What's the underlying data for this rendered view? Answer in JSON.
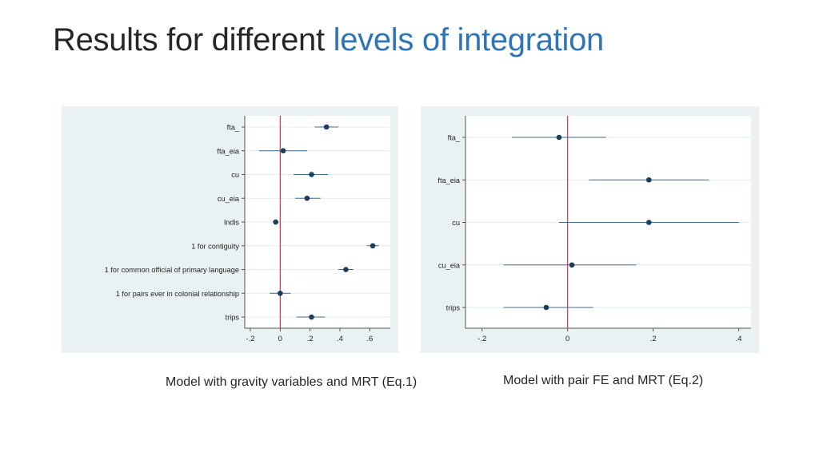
{
  "title": {
    "part1": "Results for different",
    "part2": "levels of integration",
    "accent_color": "#2e75b6"
  },
  "captions": {
    "left": "Model with gravity variables and MRT (Eq.1)",
    "right": "Model with pair FE and MRT (Eq.2)"
  },
  "chart_data": [
    {
      "type": "scatter",
      "subtype": "coefficient-plot",
      "title": "",
      "xlabel": "",
      "ylabel": "",
      "xlim": [
        -0.2,
        0.7
      ],
      "xticks": [
        -0.2,
        0,
        0.2,
        0.4,
        0.6
      ],
      "xtick_labels": [
        "-.2",
        "0",
        ".2",
        ".4",
        ".6"
      ],
      "reference_line": 0,
      "reference_color": "#d62f4d",
      "marker_color": "#1a3e5c",
      "ci_color": "#3f6b8c",
      "grid": true,
      "categories": [
        "fta_",
        "fta_eia",
        "cu",
        "cu_eia",
        "lndis",
        "1 for contiguity",
        "1 for common official of primary language",
        "1 for pairs ever in colonial relationship",
        "trips"
      ],
      "values": [
        0.31,
        0.02,
        0.21,
        0.18,
        -0.03,
        0.62,
        0.44,
        0.0,
        0.21
      ],
      "ci_low": [
        0.23,
        -0.14,
        0.09,
        0.1,
        -0.05,
        0.58,
        0.39,
        -0.07,
        0.11
      ],
      "ci_high": [
        0.39,
        0.18,
        0.32,
        0.27,
        -0.01,
        0.66,
        0.49,
        0.07,
        0.3
      ]
    },
    {
      "type": "scatter",
      "subtype": "coefficient-plot",
      "title": "",
      "xlabel": "",
      "ylabel": "",
      "xlim": [
        -0.22,
        0.41
      ],
      "xticks": [
        -0.2,
        0,
        0.2,
        0.4
      ],
      "xtick_labels": [
        "-.2",
        "0",
        ".2",
        ".4"
      ],
      "reference_line": 0,
      "reference_color": "#d62f4d",
      "marker_color": "#1a3e5c",
      "ci_color": "#3f6b8c",
      "grid": true,
      "categories": [
        "fta_",
        "fta_eia",
        "cu",
        "cu_eia",
        "trips"
      ],
      "values": [
        -0.02,
        0.19,
        0.19,
        0.01,
        -0.05
      ],
      "ci_low": [
        -0.13,
        0.05,
        -0.02,
        -0.15,
        -0.15
      ],
      "ci_high": [
        0.09,
        0.33,
        0.4,
        0.16,
        0.06
      ]
    }
  ]
}
